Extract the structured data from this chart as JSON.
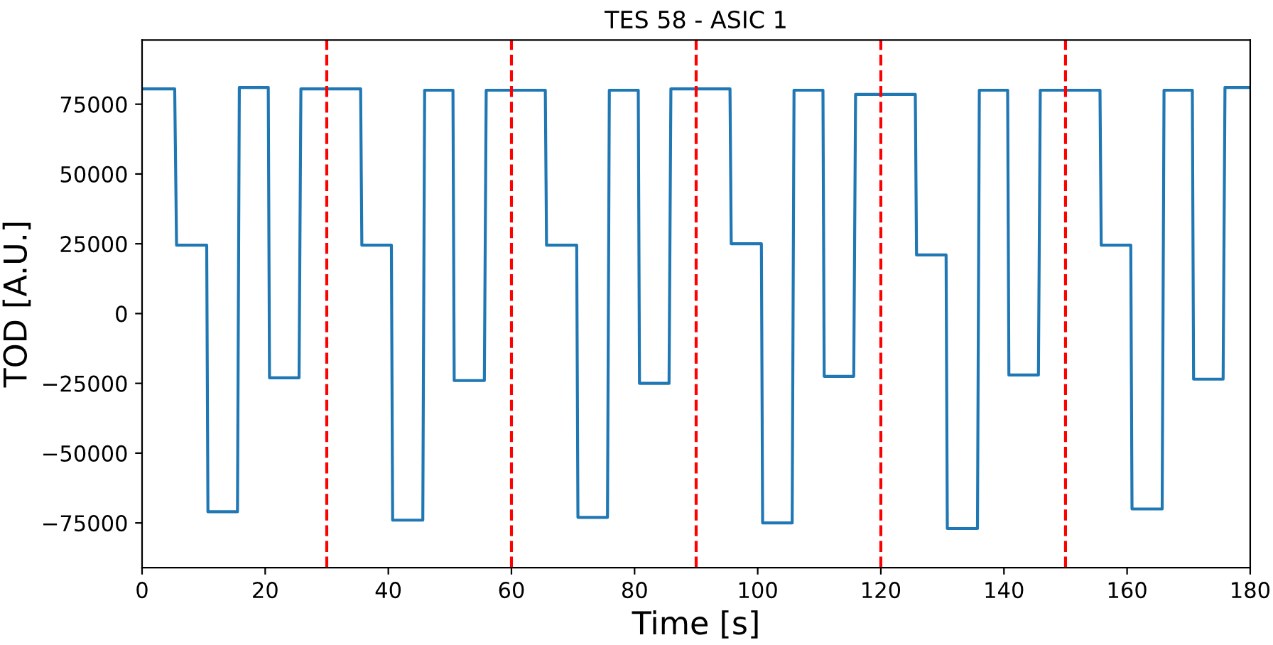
{
  "chart_data": {
    "type": "line",
    "title": "TES 58 - ASIC 1",
    "xlabel": "Time [s]",
    "ylabel": "TOD [A.U.]",
    "xlim": [
      0,
      180
    ],
    "xticks": [
      0,
      20,
      40,
      60,
      80,
      100,
      120,
      140,
      160,
      180
    ],
    "ylim": [
      -91000,
      98000
    ],
    "yticks": [
      -75000,
      -50000,
      -25000,
      0,
      25000,
      50000,
      75000
    ],
    "grid": false,
    "marker": "none",
    "line_style": "solid",
    "series": [
      {
        "color": "#1f77b4",
        "x": [
          0,
          5.3,
          5.6,
          10.5,
          10.7,
          15.5,
          15.8,
          20.5,
          20.7,
          25.5,
          25.8,
          35.5,
          35.7,
          40.5,
          40.7,
          45.6,
          45.9,
          50.5,
          50.7,
          55.6,
          55.9,
          65.5,
          65.7,
          70.6,
          70.8,
          75.6,
          75.9,
          80.6,
          80.8,
          85.6,
          85.9,
          95.5,
          95.7,
          100.6,
          100.8,
          105.6,
          105.9,
          110.6,
          110.8,
          115.6,
          115.9,
          125.6,
          125.8,
          130.6,
          130.8,
          135.7,
          136.0,
          140.6,
          140.8,
          145.6,
          145.9,
          155.6,
          155.8,
          160.6,
          160.8,
          165.7,
          166.0,
          170.6,
          170.8,
          175.6,
          175.9,
          180
        ],
        "values": [
          80500,
          80500,
          24500,
          24500,
          -71000,
          -71000,
          81000,
          81000,
          -23000,
          -23000,
          80500,
          80500,
          24500,
          24500,
          -74000,
          -74000,
          80000,
          80000,
          -24000,
          -24000,
          80000,
          80000,
          24500,
          24500,
          -73000,
          -73000,
          80000,
          80000,
          -25000,
          -25000,
          80500,
          80500,
          25000,
          25000,
          -75000,
          -75000,
          80000,
          80000,
          -22500,
          -22500,
          78500,
          78500,
          21000,
          21000,
          -77000,
          -77000,
          80000,
          80000,
          -22000,
          -22000,
          80000,
          80000,
          24500,
          24500,
          -70000,
          -70000,
          80000,
          80000,
          -23500,
          -23500,
          81000,
          81000
        ]
      }
    ],
    "ref_lines": [
      {
        "axis": "x",
        "value": 30,
        "color": "#ff0000",
        "line_style": "dashed"
      },
      {
        "axis": "x",
        "value": 60,
        "color": "#ff0000",
        "line_style": "dashed"
      },
      {
        "axis": "x",
        "value": 90,
        "color": "#ff0000",
        "line_style": "dashed"
      },
      {
        "axis": "x",
        "value": 120,
        "color": "#ff0000",
        "line_style": "dashed"
      },
      {
        "axis": "x",
        "value": 150,
        "color": "#ff0000",
        "line_style": "dashed"
      }
    ]
  }
}
